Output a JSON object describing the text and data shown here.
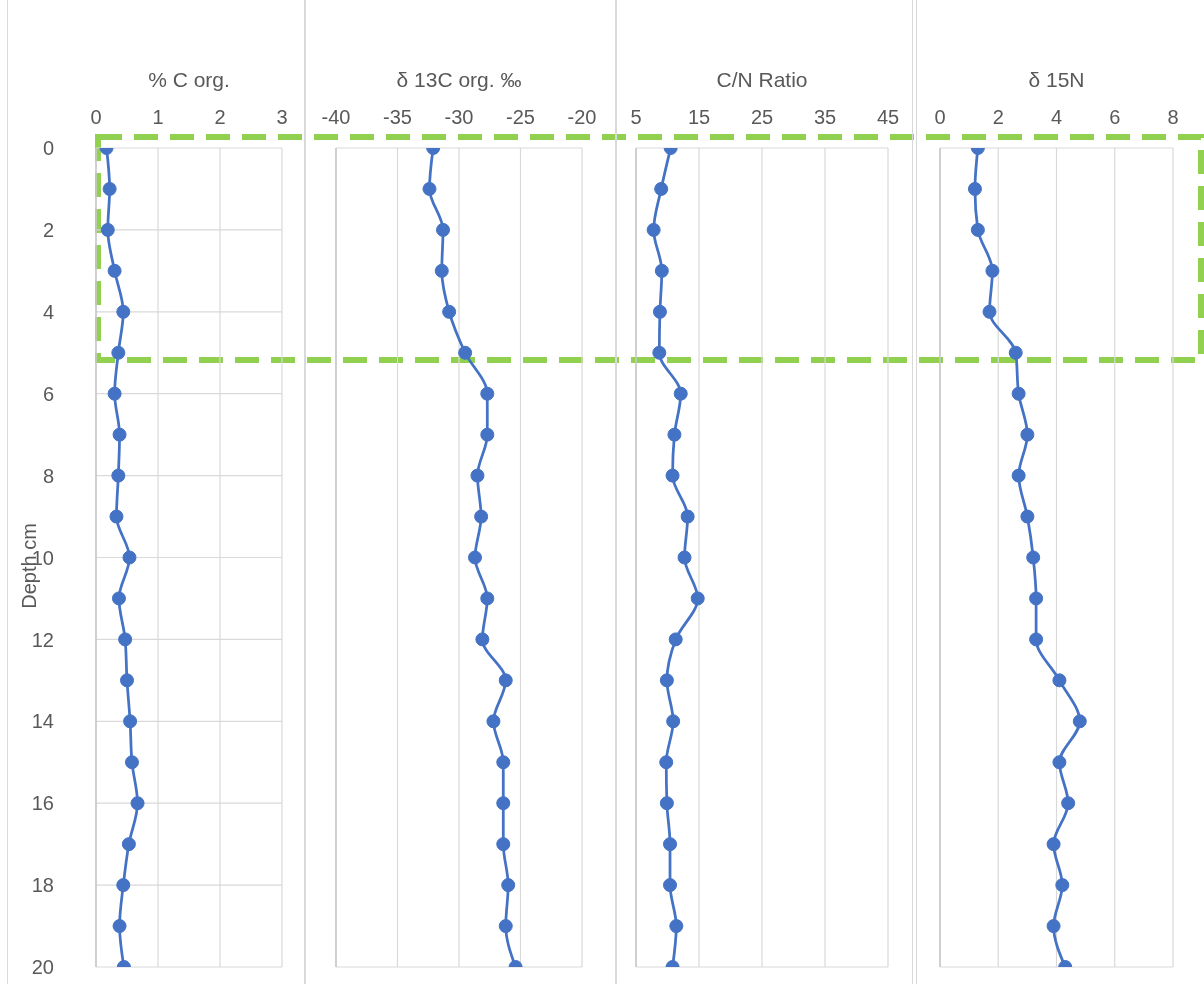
{
  "chart_data": [
    {
      "type": "line",
      "title": "% C org.",
      "ylabel": "Depth cm",
      "x": [
        0.17,
        0.22,
        0.19,
        0.3,
        0.44,
        0.36,
        0.3,
        0.38,
        0.36,
        0.33,
        0.54,
        0.37,
        0.47,
        0.5,
        0.55,
        0.58,
        0.67,
        0.53,
        0.44,
        0.38,
        0.45
      ],
      "values": [
        0,
        1,
        2,
        3,
        4,
        5,
        6,
        7,
        8,
        9,
        10,
        11,
        12,
        13,
        14,
        15,
        16,
        17,
        18,
        19,
        20
      ],
      "color": "#4472c4",
      "xlim": [
        0,
        3
      ],
      "xticks": [
        0,
        1,
        2,
        3
      ],
      "ylim": [
        20,
        0
      ],
      "yticks": [
        0,
        2,
        4,
        6,
        8,
        10,
        12,
        14,
        16,
        18,
        20
      ],
      "grid": true,
      "marker": "circle"
    },
    {
      "type": "line",
      "title": "δ 13C org. ‰",
      "x": [
        -32.1,
        -32.4,
        -31.3,
        -31.4,
        -30.8,
        -29.5,
        -27.7,
        -27.7,
        -28.5,
        -28.2,
        -28.7,
        -27.7,
        -28.1,
        -26.2,
        -27.2,
        -26.4,
        -26.4,
        -26.4,
        -26.0,
        -26.2,
        -25.4
      ],
      "values": [
        0,
        1,
        2,
        3,
        4,
        5,
        6,
        7,
        8,
        9,
        10,
        11,
        12,
        13,
        14,
        15,
        16,
        17,
        18,
        19,
        20
      ],
      "color": "#4472c4",
      "xlim": [
        -40,
        -20
      ],
      "xticks": [
        -40,
        -35,
        -30,
        -25,
        -20
      ],
      "ylim": [
        20,
        0
      ],
      "yticks": [
        0,
        2,
        4,
        6,
        8,
        10,
        12,
        14,
        16,
        18,
        20
      ],
      "grid": true,
      "marker": "circle",
      "tick_labels": "x"
    },
    {
      "type": "line",
      "title": "C/N Ratio",
      "x": [
        10.5,
        9.0,
        7.8,
        9.1,
        8.8,
        8.7,
        12.1,
        11.1,
        10.8,
        13.2,
        12.7,
        14.8,
        11.3,
        9.9,
        10.9,
        9.8,
        9.9,
        10.4,
        10.4,
        11.4,
        10.8
      ],
      "values": [
        0,
        1,
        2,
        3,
        4,
        5,
        6,
        7,
        8,
        9,
        10,
        11,
        12,
        13,
        14,
        15,
        16,
        17,
        18,
        19,
        20
      ],
      "color": "#4472c4",
      "xlim": [
        5,
        45
      ],
      "xticks": [
        5,
        15,
        25,
        35,
        45
      ],
      "ylim": [
        20,
        0
      ],
      "yticks": [
        0,
        2,
        4,
        6,
        8,
        10,
        12,
        14,
        16,
        18,
        20
      ],
      "grid": true,
      "marker": "circle",
      "tick_labels": "x"
    },
    {
      "type": "line",
      "title": "δ 15N",
      "x": [
        1.3,
        1.2,
        1.3,
        1.8,
        1.7,
        2.6,
        2.7,
        3.0,
        2.7,
        3.0,
        3.2,
        3.3,
        3.3,
        4.1,
        4.8,
        4.1,
        4.4,
        3.9,
        4.2,
        3.9,
        4.3
      ],
      "values": [
        0,
        1,
        2,
        3,
        4,
        5,
        6,
        7,
        8,
        9,
        10,
        11,
        12,
        13,
        14,
        15,
        16,
        17,
        18,
        19,
        20
      ],
      "color": "#4472c4",
      "xlim": [
        0,
        8
      ],
      "xticks": [
        0,
        2,
        4,
        6,
        8
      ],
      "ylim": [
        20,
        0
      ],
      "yticks": [
        0,
        2,
        4,
        6,
        8,
        10,
        12,
        14,
        16,
        18,
        20
      ],
      "grid": true,
      "marker": "circle",
      "tick_labels": "x"
    }
  ]
}
